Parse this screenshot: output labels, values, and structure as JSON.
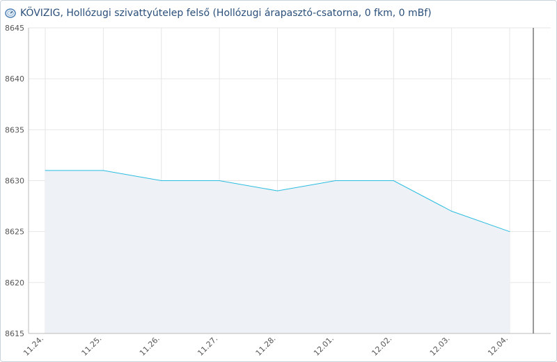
{
  "title": "KÖVIZIG, Hollózugi szivattyútelep felső (Hollózugi árapasztó-csatorna, 0 fkm, 0 mBf)",
  "title_icon": "gauge-icon",
  "colors": {
    "line": "#2bbde0",
    "area": "#eef1f6",
    "grid": "#e6e6e6",
    "axis": "#333333",
    "title": "#2a4f7a"
  },
  "chart_data": {
    "type": "area",
    "title": "KÖVIZIG, Hollózugi szivattyútelep felső (Hollózugi árapasztó-csatorna, 0 fkm, 0 mBf)",
    "xlabel": "",
    "ylabel": "",
    "ylim": [
      8615,
      8645
    ],
    "yticks": [
      8615,
      8620,
      8625,
      8630,
      8635,
      8640,
      8645
    ],
    "xticks": [
      "11.24.",
      "11.25.",
      "11.26.",
      "11.27.",
      "11.28.",
      "12.01.",
      "12.02.",
      "12.03.",
      "12.04."
    ],
    "grid": true,
    "series": [
      {
        "x": [
          "11.24.",
          "11.25.",
          "11.26.",
          "11.27.",
          "11.28.",
          "12.01.",
          "12.02.",
          "12.03.",
          "12.04."
        ],
        "values": [
          8631,
          8631,
          8630,
          8630,
          8629,
          8630,
          8630,
          8627,
          8625
        ]
      }
    ]
  }
}
